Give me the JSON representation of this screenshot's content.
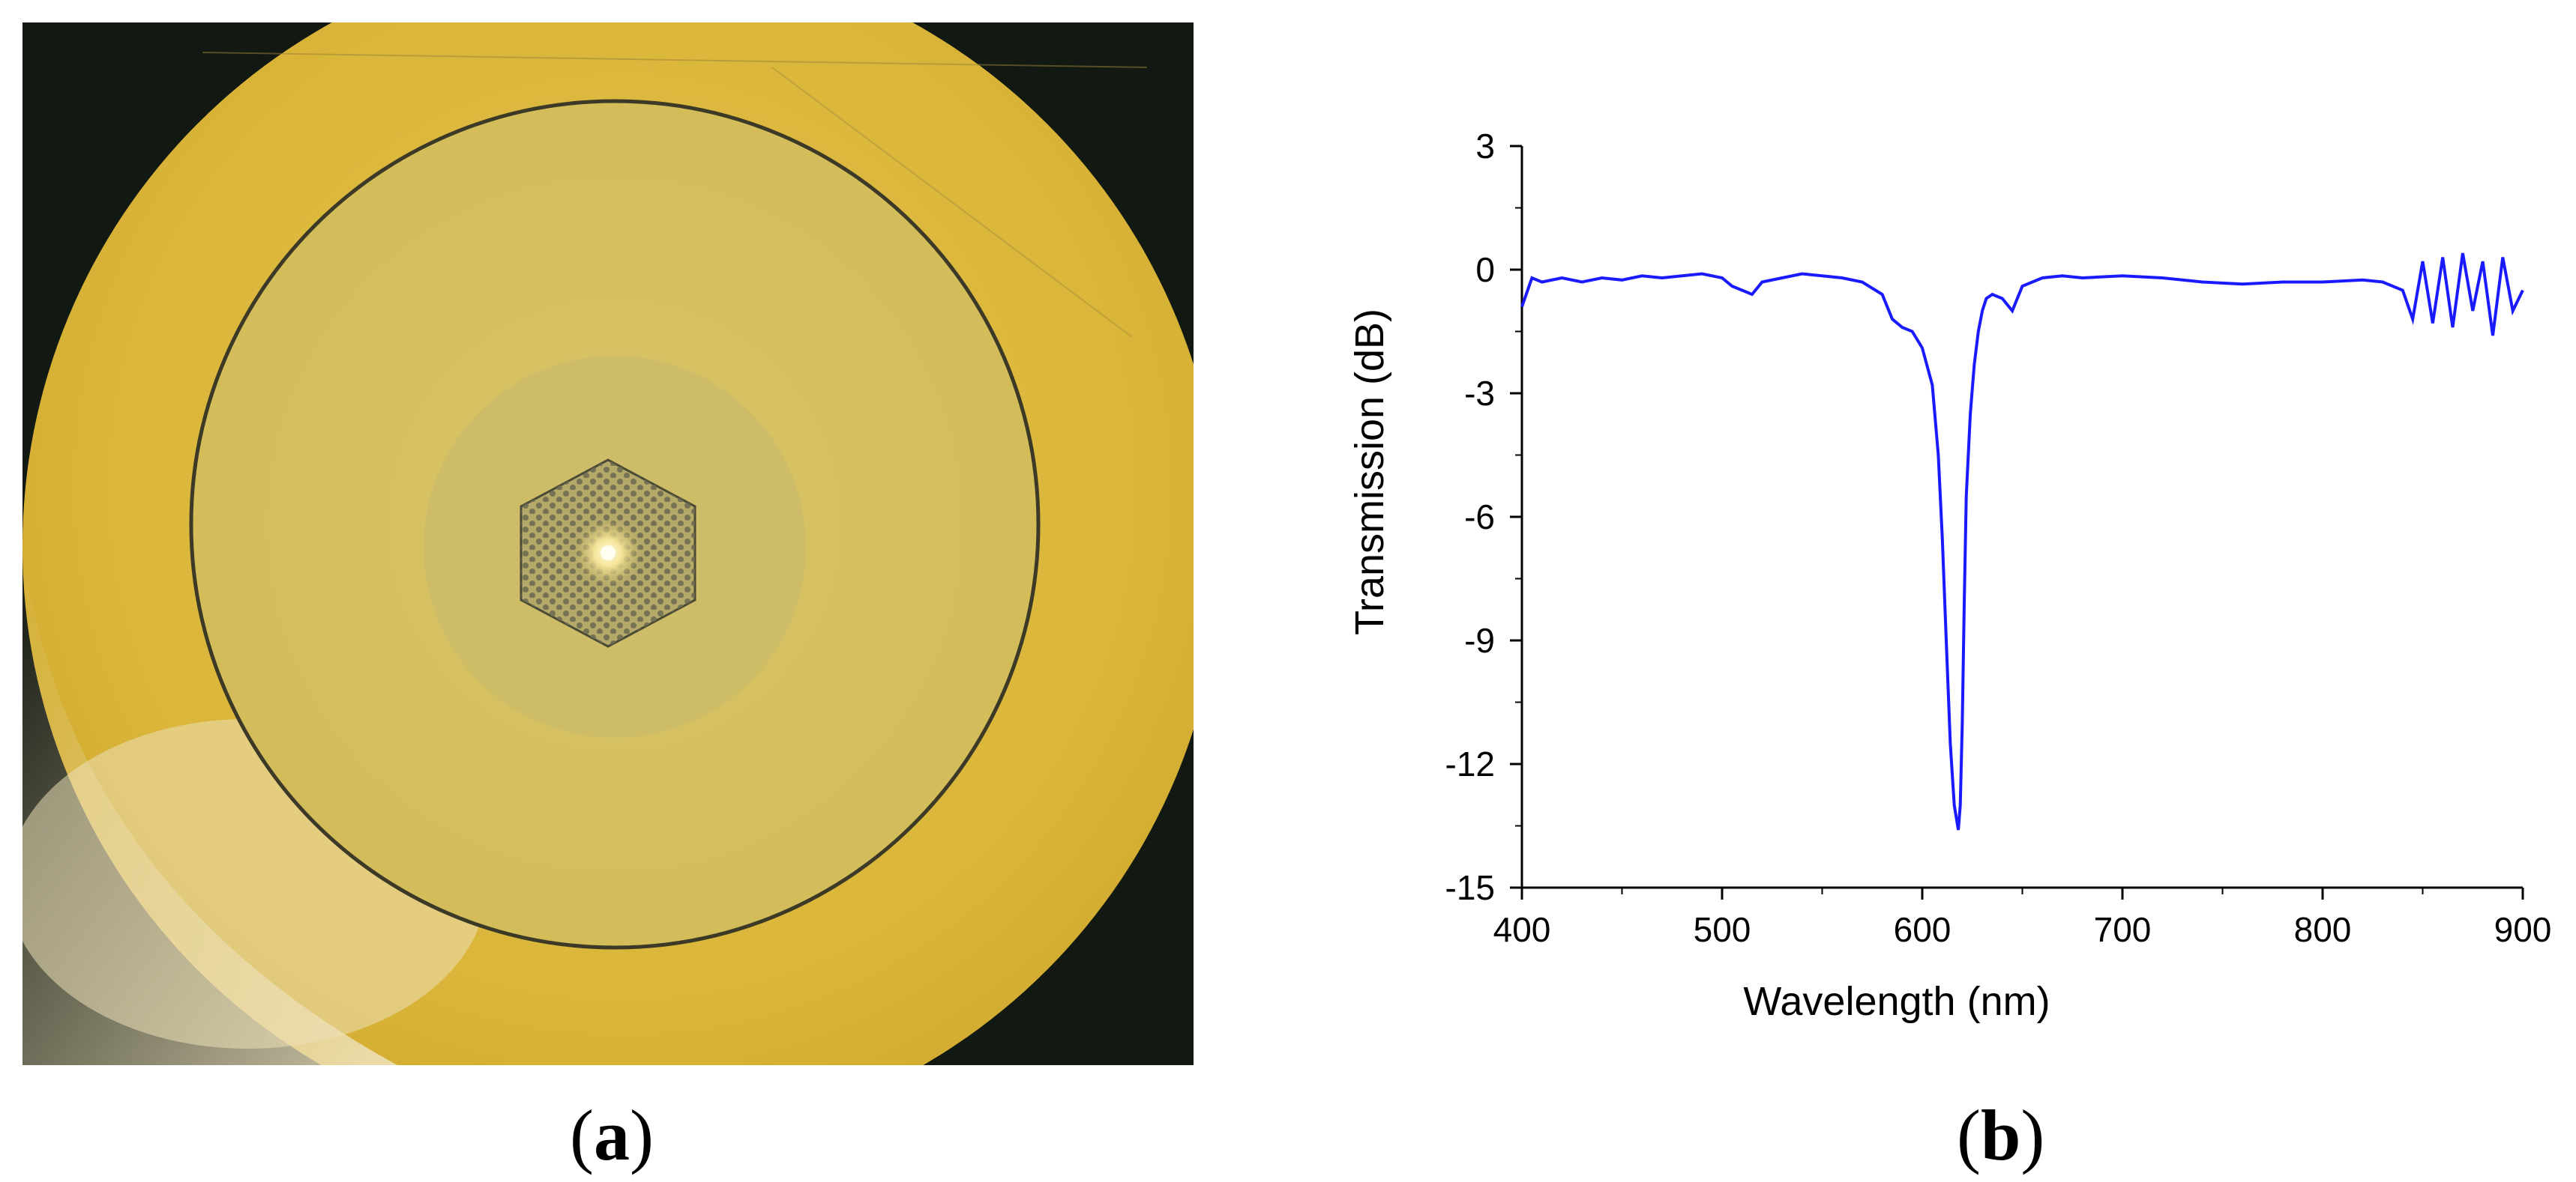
{
  "panels": {
    "a": {
      "label": "a",
      "open_paren": "(",
      "close_paren": ")"
    },
    "b": {
      "label": "b",
      "open_paren": "(",
      "close_paren": ")"
    }
  },
  "photo": {
    "description_colors": {
      "background": "#101612",
      "cladding": "#d9b63a",
      "inner_disk": "#d6c364",
      "core_region": "#cdbd68"
    }
  },
  "chart_data": {
    "type": "line",
    "xlabel": "Wavelength (nm)",
    "ylabel": "Transmission (dB)",
    "xlim": [
      400,
      900
    ],
    "ylim": [
      -15,
      3
    ],
    "xticks": [
      400,
      500,
      600,
      700,
      800,
      900
    ],
    "yticks": [
      3,
      0,
      -3,
      -6,
      -9,
      -12,
      -15
    ],
    "line_color": "#1a1aff",
    "grid": false,
    "series": [
      {
        "x": [
          400,
          405,
          410,
          420,
          430,
          440,
          450,
          460,
          470,
          480,
          490,
          500,
          505,
          510,
          515,
          520,
          530,
          540,
          550,
          560,
          570,
          580,
          585,
          590,
          595,
          600,
          605,
          608,
          610,
          612,
          614,
          616,
          618,
          619,
          620,
          621,
          622,
          624,
          626,
          628,
          630,
          632,
          635,
          640,
          645,
          650,
          660,
          670,
          680,
          700,
          720,
          740,
          760,
          780,
          800,
          820,
          830,
          840,
          845,
          850,
          855,
          860,
          865,
          870,
          875,
          880,
          885,
          890,
          895,
          900
        ],
        "y": [
          -0.9,
          -0.2,
          -0.3,
          -0.2,
          -0.3,
          -0.2,
          -0.25,
          -0.15,
          -0.2,
          -0.15,
          -0.1,
          -0.2,
          -0.4,
          -0.5,
          -0.6,
          -0.3,
          -0.2,
          -0.1,
          -0.15,
          -0.2,
          -0.3,
          -0.6,
          -1.2,
          -1.4,
          -1.5,
          -1.9,
          -2.8,
          -4.5,
          -6.5,
          -9.0,
          -11.5,
          -13.0,
          -13.6,
          -13.0,
          -11.0,
          -8.0,
          -5.5,
          -3.5,
          -2.3,
          -1.5,
          -1.0,
          -0.7,
          -0.6,
          -0.7,
          -1.0,
          -0.4,
          -0.2,
          -0.15,
          -0.2,
          -0.15,
          -0.2,
          -0.3,
          -0.35,
          -0.3,
          -0.3,
          -0.25,
          -0.3,
          -0.5,
          -1.2,
          0.2,
          -1.3,
          0.3,
          -1.4,
          0.4,
          -1.0,
          0.2,
          -1.6,
          0.3,
          -1.0,
          -0.5
        ]
      }
    ]
  }
}
